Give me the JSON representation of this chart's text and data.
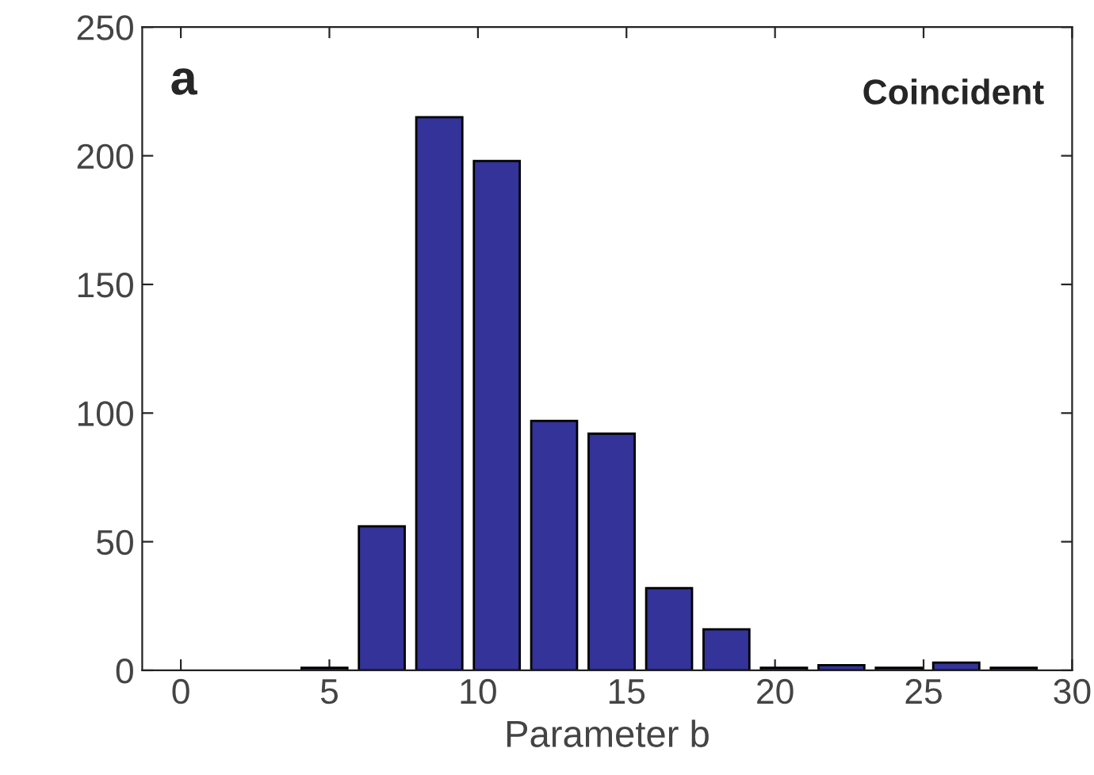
{
  "chart_data": {
    "type": "histogram",
    "xlabel": "Parameter b",
    "annotations": [
      "a",
      "Coincident"
    ],
    "bins": [
      0,
      1.93,
      3.87,
      5.8,
      7.73,
      9.67,
      11.6,
      13.53,
      15.47,
      17.4,
      19.33,
      21.27,
      23.2,
      25.13,
      27.07,
      29
    ],
    "values": [
      0,
      0,
      1,
      56,
      215,
      198,
      97,
      92,
      32,
      16,
      1,
      2,
      1,
      3,
      1
    ],
    "color": "#333399",
    "xlim": [
      -1.3,
      30
    ],
    "xticks": [
      0,
      5,
      10,
      15,
      20,
      25,
      30
    ],
    "ylim": [
      0,
      250
    ],
    "yticks": [
      0,
      50,
      100,
      150,
      200,
      250
    ],
    "grid": false
  }
}
